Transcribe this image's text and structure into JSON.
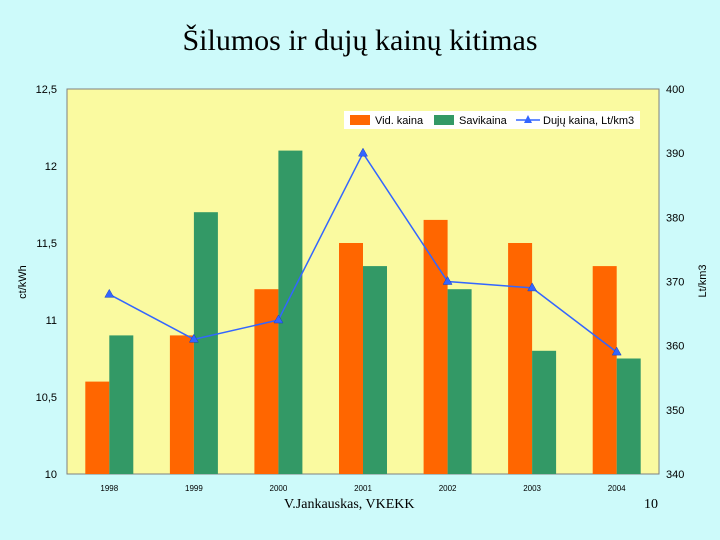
{
  "slide": {
    "title": "Šilumos ir dujų kainų kitimas",
    "author": "V.Jankauskas, VKEKK",
    "page_number": "10"
  },
  "colors": {
    "background": "#cdfafa",
    "plot_area": "#fafaa0",
    "vid_kaina": "#ff6600",
    "savikaina": "#339966",
    "duju_kaina": "#3366ff"
  },
  "chart_data": {
    "type": "bar",
    "categories": [
      "1998",
      "1999",
      "2000",
      "2001",
      "2002",
      "2003",
      "2004"
    ],
    "ylabel": "ct/kWh",
    "y2label": "Lt/km3",
    "ylim": [
      10,
      12.5
    ],
    "y2lim": [
      340,
      400
    ],
    "yticks": [
      "10",
      "10,5",
      "11",
      "11,5",
      "12",
      "12,5"
    ],
    "y2ticks": [
      "340",
      "350",
      "360",
      "370",
      "380",
      "390",
      "400"
    ],
    "legend_position": "top-right",
    "grid": false,
    "series": [
      {
        "name": "Vid. kaina",
        "type": "bar",
        "axis": "left",
        "values": [
          10.6,
          10.9,
          11.2,
          11.5,
          11.65,
          11.5,
          11.35
        ]
      },
      {
        "name": "Savikaina",
        "type": "bar",
        "axis": "left",
        "values": [
          10.9,
          11.7,
          12.1,
          11.35,
          11.2,
          10.8,
          10.75
        ]
      },
      {
        "name": "Dujų kaina, Lt/km3",
        "type": "line",
        "axis": "right",
        "marker": "triangle",
        "values": [
          368,
          361,
          364,
          390,
          370,
          369,
          359
        ]
      }
    ]
  }
}
